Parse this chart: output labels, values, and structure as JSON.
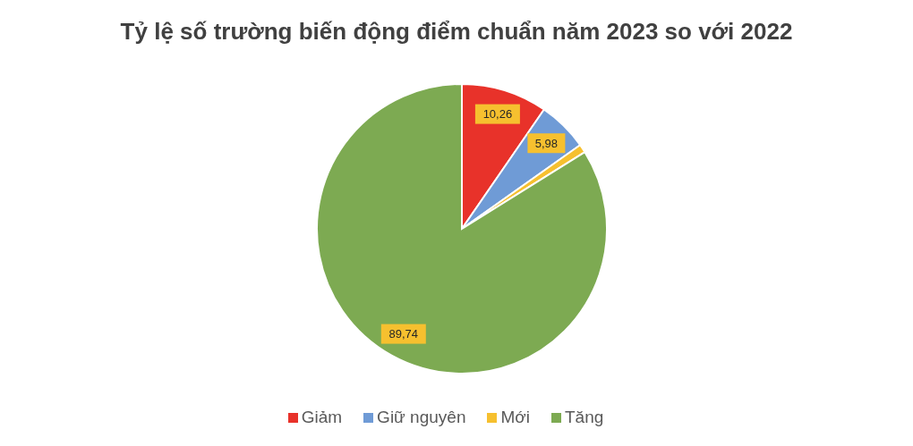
{
  "chart_data": {
    "type": "pie",
    "title": "Tỷ lệ số trường biến động điểm chuẩn năm 2023 so với 2022",
    "categories": [
      "Giảm",
      "Giữ nguyên",
      "Mới",
      "Tăng"
    ],
    "values": [
      10.26,
      5.98,
      1,
      89.74
    ],
    "colors": [
      "#e8322a",
      "#6f9bd6",
      "#f6c02f",
      "#7daa52"
    ],
    "value_labels": [
      "10,26",
      "5,98",
      null,
      "89,74"
    ],
    "legend": "bottom"
  }
}
